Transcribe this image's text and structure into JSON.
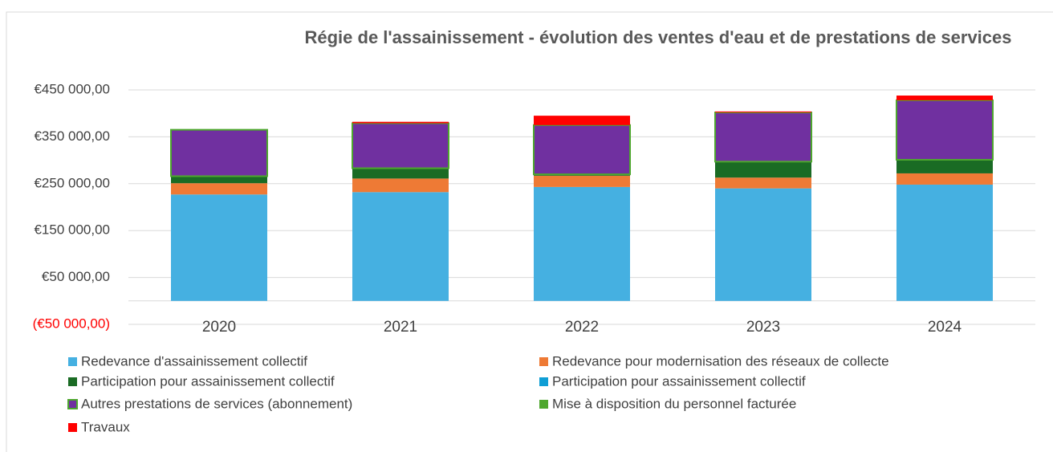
{
  "chart_data": {
    "type": "stacked_bar",
    "title": "Régie de l'assainissement - évolution des ventes d'eau et de prestations de services",
    "categories": [
      "2020",
      "2021",
      "2022",
      "2023",
      "2024"
    ],
    "series": [
      {
        "name": "Redevance d'assainissement collectif",
        "color": "#45b0e1",
        "values": [
          227000,
          232000,
          243000,
          240000,
          248000
        ]
      },
      {
        "name": "Redevance pour modernisation des réseaux de collecte",
        "color": "#ee7a35",
        "values": [
          24000,
          29000,
          24000,
          23000,
          24000
        ]
      },
      {
        "name": "Participation pour assainissement collectif",
        "color": "#1a6b24",
        "values": [
          15000,
          22000,
          3000,
          34000,
          29000
        ]
      },
      {
        "name": "Participation pour assainissement collectif",
        "color": "#0f9ed5",
        "values": [
          0,
          0,
          0,
          0,
          0
        ]
      },
      {
        "name": "Autres prestations de services (abonnement)",
        "color": "#7030a0",
        "values": [
          99000,
          96000,
          105000,
          105000,
          127000
        ]
      },
      {
        "name": "Mise à disposition du personnel facturée",
        "color": "#4ea72e",
        "values": [
          0,
          0,
          0,
          0,
          0
        ]
      },
      {
        "name": "Travaux",
        "color": "#ff0000",
        "values": [
          0,
          3000,
          20000,
          2000,
          10000
        ]
      }
    ],
    "ylim": [
      -50000,
      450000
    ],
    "yticks": [
      {
        "value": -50000,
        "label": "(€50 000,00)"
      },
      {
        "value": 50000,
        "label": "€50 000,00"
      },
      {
        "value": 150000,
        "label": "€150 000,00"
      },
      {
        "value": 250000,
        "label": "€250 000,00"
      },
      {
        "value": 350000,
        "label": "€350 000,00"
      },
      {
        "value": 450000,
        "label": "€450 000,00"
      }
    ],
    "negative_tick_color": "#ff0000",
    "grid": true,
    "legend": "bottom"
  }
}
